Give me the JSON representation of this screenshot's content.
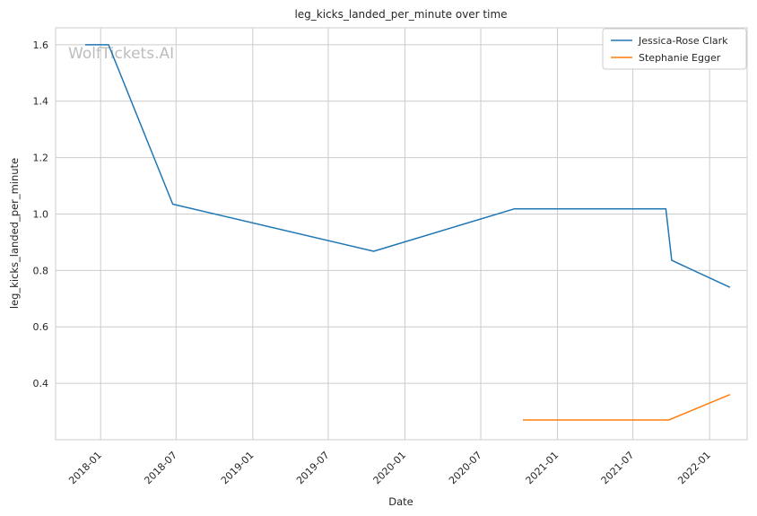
{
  "chart_data": {
    "type": "line",
    "title": "leg_kicks_landed_per_minute over time",
    "xlabel": "Date",
    "ylabel": "leg_kicks_landed_per_minute",
    "watermark": "WolfTickets.AI",
    "x_ticks": [
      "2018-01",
      "2018-07",
      "2019-01",
      "2019-07",
      "2020-01",
      "2020-07",
      "2021-01",
      "2021-07",
      "2022-01"
    ],
    "y_ticks": [
      0.4,
      0.6,
      0.8,
      1.0,
      1.2,
      1.4,
      1.6
    ],
    "y_tick_labels": [
      "0.4",
      "0.6",
      "0.8",
      "1.0",
      "1.2",
      "1.4",
      "1.6"
    ],
    "xlim": [
      "2017-09-15",
      "2022-04-01"
    ],
    "ylim": [
      0.2,
      1.66
    ],
    "grid": true,
    "legend_position": "top-right",
    "series": [
      {
        "name": "Jessica-Rose Clark",
        "color": "#1f77b4",
        "points": [
          {
            "x": "2017-11-25",
            "y": 1.6
          },
          {
            "x": "2018-01-20",
            "y": 1.6
          },
          {
            "x": "2018-06-23",
            "y": 1.035
          },
          {
            "x": "2019-10-18",
            "y": 0.868
          },
          {
            "x": "2020-09-19",
            "y": 1.018
          },
          {
            "x": "2021-09-18",
            "y": 1.018
          },
          {
            "x": "2021-10-02",
            "y": 0.836
          },
          {
            "x": "2022-02-19",
            "y": 0.74
          }
        ]
      },
      {
        "name": "Stephanie Egger",
        "color": "#ff7f0e",
        "points": [
          {
            "x": "2020-10-10",
            "y": 0.27
          },
          {
            "x": "2021-09-25",
            "y": 0.27
          },
          {
            "x": "2022-02-19",
            "y": 0.36
          }
        ]
      }
    ]
  }
}
